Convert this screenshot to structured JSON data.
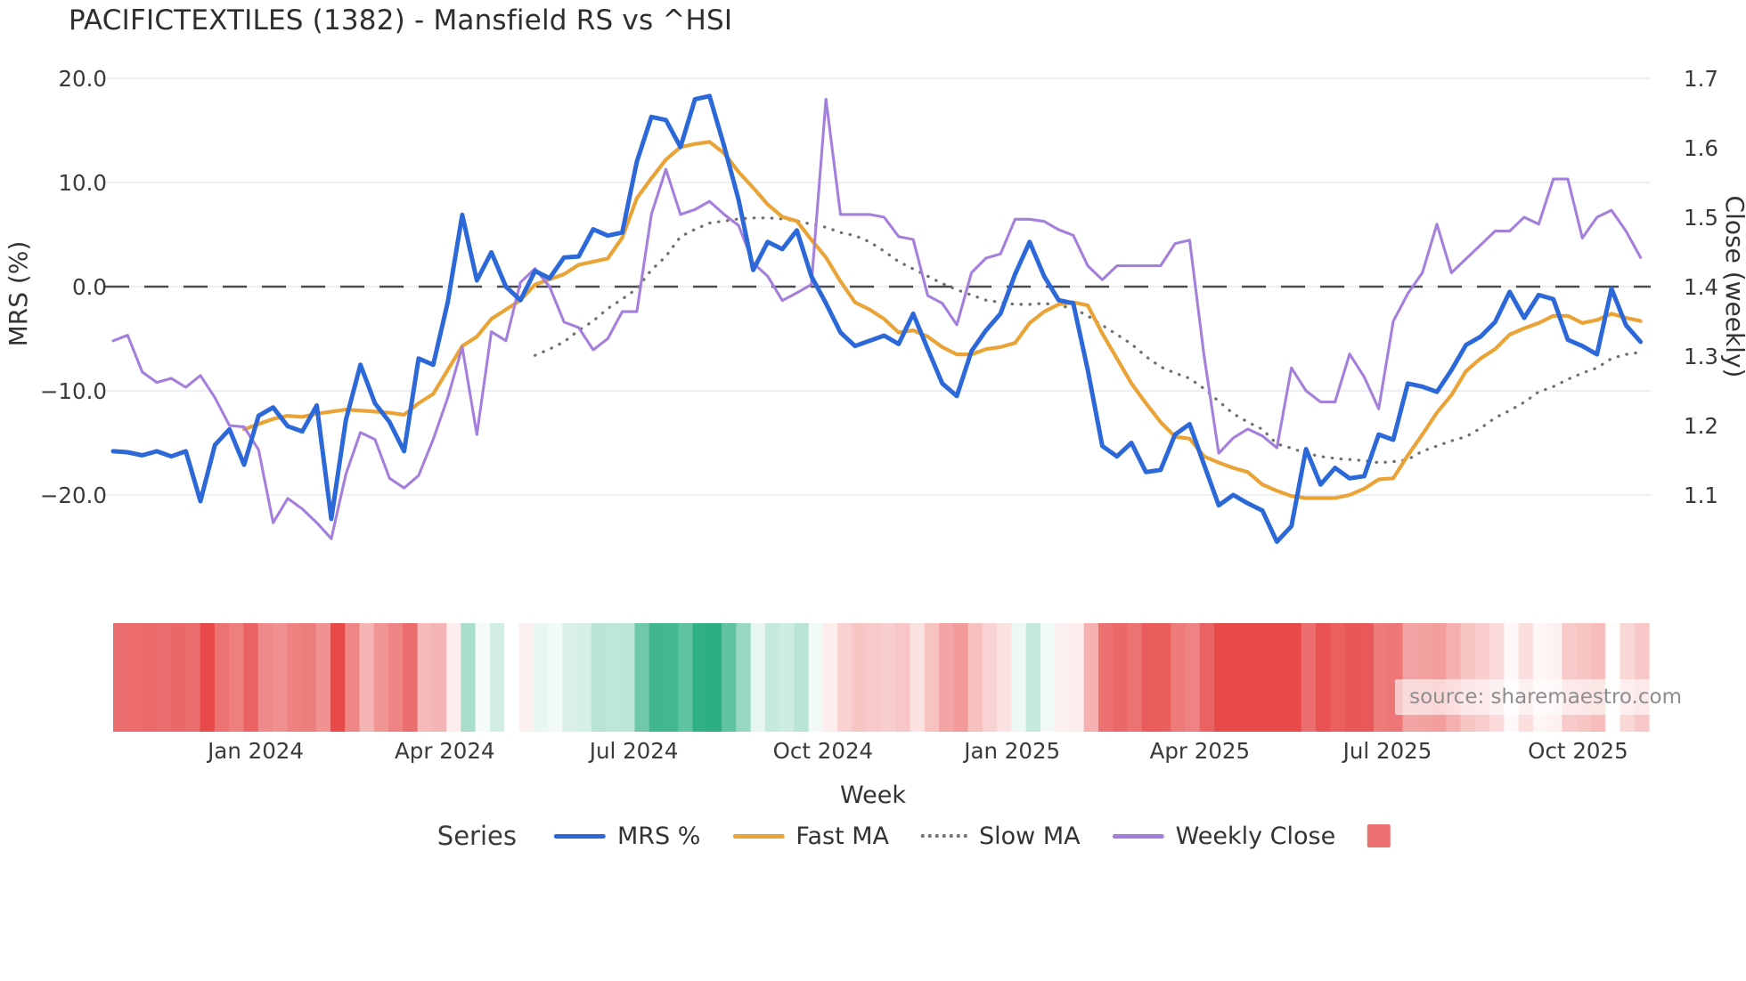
{
  "title": "PACIFICTEXTILES (1382) - Mansfield RS vs ^HSI",
  "watermark": "source: sharemaestro.com",
  "colors": {
    "mrs": "#2d68d8",
    "fast_ma": "#eaa336",
    "slow_ma": "#6f6f6f",
    "weekly_close": "#a47fdc",
    "zero_line": "#4b4b52",
    "gridline": "#e8e8f0",
    "heat_negative": "#e84a4a",
    "heat_positive": "#1ba977",
    "legend_square": "#ee7171",
    "text": "#3a3a3a"
  },
  "axes": {
    "left": {
      "label": "MRS (%)",
      "ticks": [
        "20.0",
        "10.0",
        "0.0",
        "−10.0",
        "−20.0"
      ],
      "tick_values": [
        20,
        10,
        0,
        -10,
        -20
      ]
    },
    "right": {
      "label": "Close (weekly)",
      "ticks": [
        "1.7",
        "1.6",
        "1.5",
        "1.4",
        "1.3",
        "1.2",
        "1.1"
      ],
      "tick_values": [
        1.7,
        1.6,
        1.5,
        1.4,
        1.3,
        1.2,
        1.1
      ]
    },
    "x": {
      "label": "Week",
      "ticks": [
        "Jan 2024",
        "Apr 2024",
        "Jul 2024",
        "Oct 2024",
        "Jan 2025",
        "Apr 2025",
        "Jul 2025",
        "Oct 2025"
      ],
      "tick_week_index": [
        9.8,
        22.8,
        35.8,
        48.8,
        61.8,
        74.7,
        87.6,
        100.7
      ]
    }
  },
  "legend": {
    "title": "Series",
    "items": [
      {
        "label": "MRS %",
        "swatch": "line",
        "color": "#2d68d8"
      },
      {
        "label": "Fast MA",
        "swatch": "line",
        "color": "#eaa336"
      },
      {
        "label": "Slow MA",
        "swatch": "dotted",
        "color": "#6f6f6f"
      },
      {
        "label": "Weekly Close",
        "swatch": "line",
        "color": "#a47fdc"
      },
      {
        "label": "",
        "swatch": "square",
        "color": "#ee7171"
      }
    ]
  },
  "chart_data": {
    "type": "line",
    "x_unit": "weekly index (late Oct 2023 – late Oct 2025, 106 weeks)",
    "title": "PACIFICTEXTILES (1382) - Mansfield RS vs ^HSI",
    "xlabel": "Week",
    "ylabel_left": "MRS (%)",
    "ylabel_right": "Close (weekly)",
    "ylim_left": [
      -26.5,
      22.5
    ],
    "ylim_right": [
      1.0025,
      1.7375
    ],
    "grid": "horizontal only, light; dashed dark line at MRS 0 (= Close 1.4)",
    "legend_position": "bottom center",
    "series": [
      {
        "name": "MRS %",
        "axis": "left",
        "style": "solid",
        "color": "#2d68d8",
        "start_week": 0,
        "values": [
          -15.8,
          -15.9,
          -16.2,
          -15.8,
          -16.3,
          -15.8,
          -20.6,
          -15.2,
          -13.7,
          -17.1,
          -12.4,
          -11.6,
          -13.4,
          -13.9,
          -11.4,
          -22.3,
          -12.8,
          -7.5,
          -11.2,
          -13.0,
          -15.8,
          -6.9,
          -7.5,
          -1.5,
          6.9,
          0.6,
          3.3,
          0.0,
          -1.3,
          1.5,
          0.8,
          2.8,
          2.9,
          5.5,
          4.9,
          5.2,
          12.0,
          16.3,
          16.0,
          13.4,
          18.0,
          18.3,
          13.5,
          8.3,
          1.6,
          4.3,
          3.6,
          5.4,
          1.0,
          -1.6,
          -4.4,
          -5.7,
          -5.2,
          -4.7,
          -5.5,
          -2.6,
          -6.0,
          -9.3,
          -10.5,
          -6.2,
          -4.2,
          -2.6,
          1.2,
          4.3,
          1.0,
          -1.3,
          -1.6,
          -8.0,
          -15.3,
          -16.3,
          -15.0,
          -17.8,
          -17.6,
          -14.2,
          -13.2,
          -17.1,
          -21.0,
          -20.0,
          -20.8,
          -21.5,
          -24.5,
          -23.0,
          -15.6,
          -19.0,
          -17.4,
          -18.4,
          -18.2,
          -14.2,
          -14.7,
          -9.3,
          -9.6,
          -10.1,
          -8.0,
          -5.6,
          -4.8,
          -3.4,
          -0.5,
          -3.0,
          -0.8,
          -1.2,
          -5.1,
          -5.7,
          -6.5,
          -0.2,
          -3.7,
          -5.3
        ]
      },
      {
        "name": "Fast MA",
        "axis": "left",
        "style": "solid",
        "color": "#eaa336",
        "start_week": 9,
        "values": [
          -13.7,
          -13.2,
          -12.7,
          -12.4,
          -12.5,
          -12.2,
          -12.0,
          -11.8,
          -11.9,
          -12.0,
          -12.1,
          -12.3,
          -11.2,
          -10.3,
          -8.0,
          -5.7,
          -4.8,
          -3.1,
          -2.2,
          -1.3,
          0.2,
          0.7,
          1.2,
          2.1,
          2.4,
          2.7,
          4.7,
          8.5,
          10.4,
          12.2,
          13.4,
          13.7,
          13.9,
          12.8,
          11.0,
          9.5,
          7.9,
          6.7,
          6.3,
          4.5,
          2.8,
          0.5,
          -1.5,
          -2.2,
          -3.1,
          -4.4,
          -4.2,
          -4.8,
          -5.8,
          -6.5,
          -6.5,
          -6.0,
          -5.8,
          -5.4,
          -3.5,
          -2.4,
          -1.7,
          -1.5,
          -1.8,
          -4.5,
          -6.9,
          -9.3,
          -11.2,
          -13.0,
          -14.4,
          -14.6,
          -16.3,
          -16.9,
          -17.4,
          -17.8,
          -19.0,
          -19.6,
          -20.1,
          -20.3,
          -20.3,
          -20.3,
          -20.0,
          -19.4,
          -18.5,
          -18.4,
          -16.2,
          -14.2,
          -12.1,
          -10.4,
          -8.1,
          -6.9,
          -6.0,
          -4.6,
          -4.0,
          -3.5,
          -2.8,
          -2.8,
          -3.5,
          -3.2,
          -2.6,
          -3.0,
          -3.3
        ]
      },
      {
        "name": "Slow MA",
        "axis": "left",
        "style": "dotted",
        "color": "#6f6f6f",
        "start_week": 29,
        "values": [
          -6.6,
          -6.0,
          -5.3,
          -4.2,
          -3.3,
          -2.1,
          -1.2,
          -0.2,
          1.6,
          2.9,
          4.8,
          5.5,
          6.1,
          6.3,
          6.5,
          6.6,
          6.6,
          6.5,
          6.3,
          6.0,
          5.7,
          5.2,
          4.9,
          4.3,
          3.4,
          2.4,
          1.7,
          1.0,
          0.3,
          -0.3,
          -0.8,
          -1.3,
          -1.5,
          -1.7,
          -1.7,
          -1.6,
          -1.8,
          -2.1,
          -2.8,
          -3.7,
          -4.6,
          -5.5,
          -6.7,
          -7.7,
          -8.3,
          -8.8,
          -9.8,
          -11.0,
          -12.2,
          -13.0,
          -13.7,
          -15.1,
          -15.5,
          -16.0,
          -16.3,
          -16.5,
          -16.6,
          -16.7,
          -16.9,
          -16.8,
          -16.6,
          -15.8,
          -15.3,
          -14.8,
          -14.4,
          -13.6,
          -12.6,
          -11.9,
          -11.1,
          -10.1,
          -9.6,
          -8.9,
          -8.3,
          -7.8,
          -6.9,
          -6.5,
          -6.3
        ]
      },
      {
        "name": "Weekly Close",
        "axis": "right",
        "style": "solid",
        "color": "#a47fdc",
        "start_week": 0,
        "values": [
          1.322,
          1.33,
          1.277,
          1.262,
          1.268,
          1.255,
          1.272,
          1.24,
          1.2,
          1.198,
          1.165,
          1.06,
          1.095,
          1.08,
          1.06,
          1.037,
          1.13,
          1.19,
          1.18,
          1.124,
          1.11,
          1.128,
          1.18,
          1.24,
          1.313,
          1.187,
          1.335,
          1.322,
          1.406,
          1.426,
          1.4,
          1.349,
          1.341,
          1.309,
          1.325,
          1.364,
          1.364,
          1.504,
          1.569,
          1.504,
          1.511,
          1.523,
          1.504,
          1.488,
          1.434,
          1.415,
          1.38,
          1.391,
          1.403,
          1.67,
          1.504,
          1.504,
          1.504,
          1.5,
          1.472,
          1.468,
          1.387,
          1.376,
          1.345,
          1.42,
          1.441,
          1.447,
          1.497,
          1.497,
          1.494,
          1.482,
          1.474,
          1.43,
          1.41,
          1.43,
          1.43,
          1.43,
          1.43,
          1.462,
          1.467,
          1.3,
          1.16,
          1.182,
          1.195,
          1.185,
          1.168,
          1.283,
          1.25,
          1.234,
          1.234,
          1.303,
          1.27,
          1.224,
          1.35,
          1.39,
          1.42,
          1.49,
          1.42,
          1.44,
          1.46,
          1.48,
          1.48,
          1.5,
          1.49,
          1.555,
          1.555,
          1.47,
          1.5,
          1.51,
          1.48,
          1.442
        ]
      }
    ],
    "heatmap_strip": {
      "description": "horizontal color strip below plot, one cell per week, diverging red (negative MRS %) to green (positive MRS %)",
      "derived_from": "MRS %",
      "negative_color": "#e84a4a",
      "positive_color": "#1ba977"
    }
  }
}
